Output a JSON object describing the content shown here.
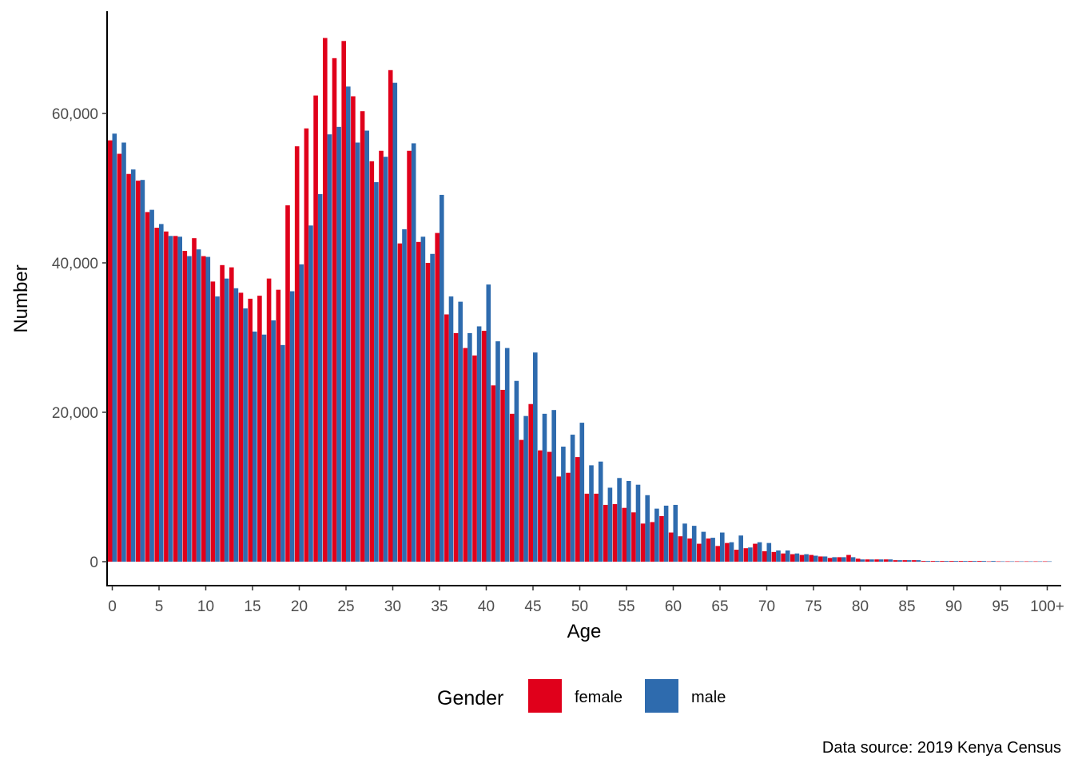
{
  "chart_data": {
    "type": "bar",
    "xlabel": "Age",
    "ylabel": "Number",
    "ylim": [
      0,
      70000
    ],
    "yticks": [
      0,
      20000,
      40000,
      60000
    ],
    "ytick_labels": [
      "0",
      "20,000",
      "40,000",
      "60,000"
    ],
    "xticks": [
      0,
      5,
      10,
      15,
      20,
      25,
      30,
      35,
      40,
      45,
      50,
      55,
      60,
      65,
      70,
      75,
      80,
      85,
      90,
      95,
      100
    ],
    "xtick_labels": [
      "0",
      "5",
      "10",
      "15",
      "20",
      "25",
      "30",
      "35",
      "40",
      "45",
      "50",
      "55",
      "60",
      "65",
      "70",
      "75",
      "80",
      "85",
      "90",
      "95",
      "100+"
    ],
    "grid": false,
    "legend": {
      "title": "Gender",
      "position": "bottom",
      "entries": [
        "female",
        "male"
      ]
    },
    "caption": "Data source: 2019 Kenya Census",
    "colors": {
      "female": "#E0001B",
      "male": "#2E6BAE"
    },
    "categories": [
      0,
      1,
      2,
      3,
      4,
      5,
      6,
      7,
      8,
      9,
      10,
      11,
      12,
      13,
      14,
      15,
      16,
      17,
      18,
      19,
      20,
      21,
      22,
      23,
      24,
      25,
      26,
      27,
      28,
      29,
      30,
      31,
      32,
      33,
      34,
      35,
      36,
      37,
      38,
      39,
      40,
      41,
      42,
      43,
      44,
      45,
      46,
      47,
      48,
      49,
      50,
      51,
      52,
      53,
      54,
      55,
      56,
      57,
      58,
      59,
      60,
      61,
      62,
      63,
      64,
      65,
      66,
      67,
      68,
      69,
      70,
      71,
      72,
      73,
      74,
      75,
      76,
      77,
      78,
      79,
      80,
      81,
      82,
      83,
      84,
      85,
      86,
      87,
      88,
      89,
      90,
      91,
      92,
      93,
      94,
      95,
      96,
      97,
      98,
      99,
      100
    ],
    "series": [
      {
        "name": "female",
        "values": [
          56400,
          54600,
          51900,
          51000,
          46800,
          44700,
          44200,
          43600,
          41600,
          43300,
          40900,
          37500,
          39700,
          39400,
          36000,
          35200,
          35600,
          37900,
          36400,
          47700,
          55600,
          58000,
          62400,
          70100,
          67400,
          69700,
          62300,
          60300,
          53600,
          55000,
          65800,
          42600,
          55000,
          42800,
          40000,
          44000,
          33100,
          30600,
          28600,
          27600,
          30900,
          23600,
          23000,
          19800,
          16300,
          21100,
          14900,
          14700,
          11400,
          11900,
          14000,
          9100,
          9100,
          7600,
          7700,
          7200,
          6600,
          5100,
          5300,
          6100,
          3900,
          3400,
          3100,
          2400,
          3100,
          2100,
          2500,
          1600,
          1800,
          2400,
          1400,
          1300,
          1100,
          1000,
          900,
          900,
          700,
          500,
          600,
          900,
          400,
          300,
          300,
          300,
          200,
          200,
          200,
          100,
          100,
          100,
          100,
          100,
          100,
          100,
          50,
          50,
          50,
          50,
          50,
          50,
          50
        ]
      },
      {
        "name": "male",
        "values": [
          57300,
          56100,
          52500,
          51100,
          47100,
          45200,
          43600,
          43500,
          40900,
          41800,
          40800,
          35500,
          37900,
          36600,
          33900,
          30800,
          30400,
          32300,
          29000,
          36200,
          39800,
          45000,
          49200,
          57200,
          58200,
          63600,
          56100,
          57700,
          50800,
          54200,
          64100,
          44500,
          56000,
          43500,
          41200,
          49100,
          35500,
          34800,
          30600,
          31500,
          37100,
          29500,
          28600,
          24200,
          19500,
          28000,
          19800,
          20300,
          15400,
          17000,
          18600,
          12900,
          13400,
          9900,
          11200,
          10800,
          10300,
          8900,
          7100,
          7500,
          7600,
          5100,
          4800,
          4000,
          3200,
          3900,
          2600,
          3500,
          1900,
          2600,
          2500,
          1500,
          1500,
          1100,
          1000,
          800,
          700,
          600,
          600,
          600,
          300,
          300,
          300,
          300,
          200,
          200,
          200,
          100,
          100,
          100,
          100,
          100,
          100,
          100,
          100,
          50,
          50,
          50,
          50,
          50,
          50
        ]
      }
    ]
  }
}
